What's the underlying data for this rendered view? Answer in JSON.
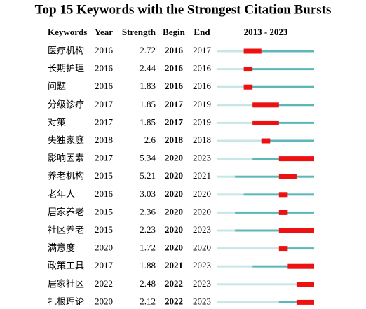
{
  "chart_data": {
    "type": "burst",
    "title": "Top 15 Keywords with the Strongest Citation Bursts",
    "columns": [
      "Keywords",
      "Year",
      "Strength",
      "Begin",
      "End"
    ],
    "range_label": "2013 - 2023",
    "xlim": [
      2013,
      2023
    ],
    "colors": {
      "before": "#c9e6e7",
      "active": "#5cb8b8",
      "burst": "#ee1111"
    },
    "rows": [
      {
        "keyword": "医疗机构",
        "year": 2016,
        "strength": 2.72,
        "begin": 2016,
        "end": 2017
      },
      {
        "keyword": "长期护理",
        "year": 2016,
        "strength": 2.44,
        "begin": 2016,
        "end": 2016
      },
      {
        "keyword": "问题",
        "year": 2016,
        "strength": 1.83,
        "begin": 2016,
        "end": 2016
      },
      {
        "keyword": "分级诊疗",
        "year": 2017,
        "strength": 1.85,
        "begin": 2017,
        "end": 2019
      },
      {
        "keyword": "对策",
        "year": 2017,
        "strength": 1.85,
        "begin": 2017,
        "end": 2019
      },
      {
        "keyword": "失独家庭",
        "year": 2018,
        "strength": 2.6,
        "begin": 2018,
        "end": 2018
      },
      {
        "keyword": "影响因素",
        "year": 2017,
        "strength": 5.34,
        "begin": 2020,
        "end": 2023
      },
      {
        "keyword": "养老机构",
        "year": 2015,
        "strength": 5.21,
        "begin": 2020,
        "end": 2021
      },
      {
        "keyword": "老年人",
        "year": 2016,
        "strength": 3.03,
        "begin": 2020,
        "end": 2020
      },
      {
        "keyword": "居家养老",
        "year": 2015,
        "strength": 2.36,
        "begin": 2020,
        "end": 2020
      },
      {
        "keyword": "社区养老",
        "year": 2015,
        "strength": 2.23,
        "begin": 2020,
        "end": 2023
      },
      {
        "keyword": "满意度",
        "year": 2020,
        "strength": 1.72,
        "begin": 2020,
        "end": 2020
      },
      {
        "keyword": "政策工具",
        "year": 2017,
        "strength": 1.88,
        "begin": 2021,
        "end": 2023
      },
      {
        "keyword": "居家社区",
        "year": 2022,
        "strength": 2.48,
        "begin": 2022,
        "end": 2023
      },
      {
        "keyword": "扎根理论",
        "year": 2020,
        "strength": 2.12,
        "begin": 2022,
        "end": 2023
      }
    ]
  }
}
